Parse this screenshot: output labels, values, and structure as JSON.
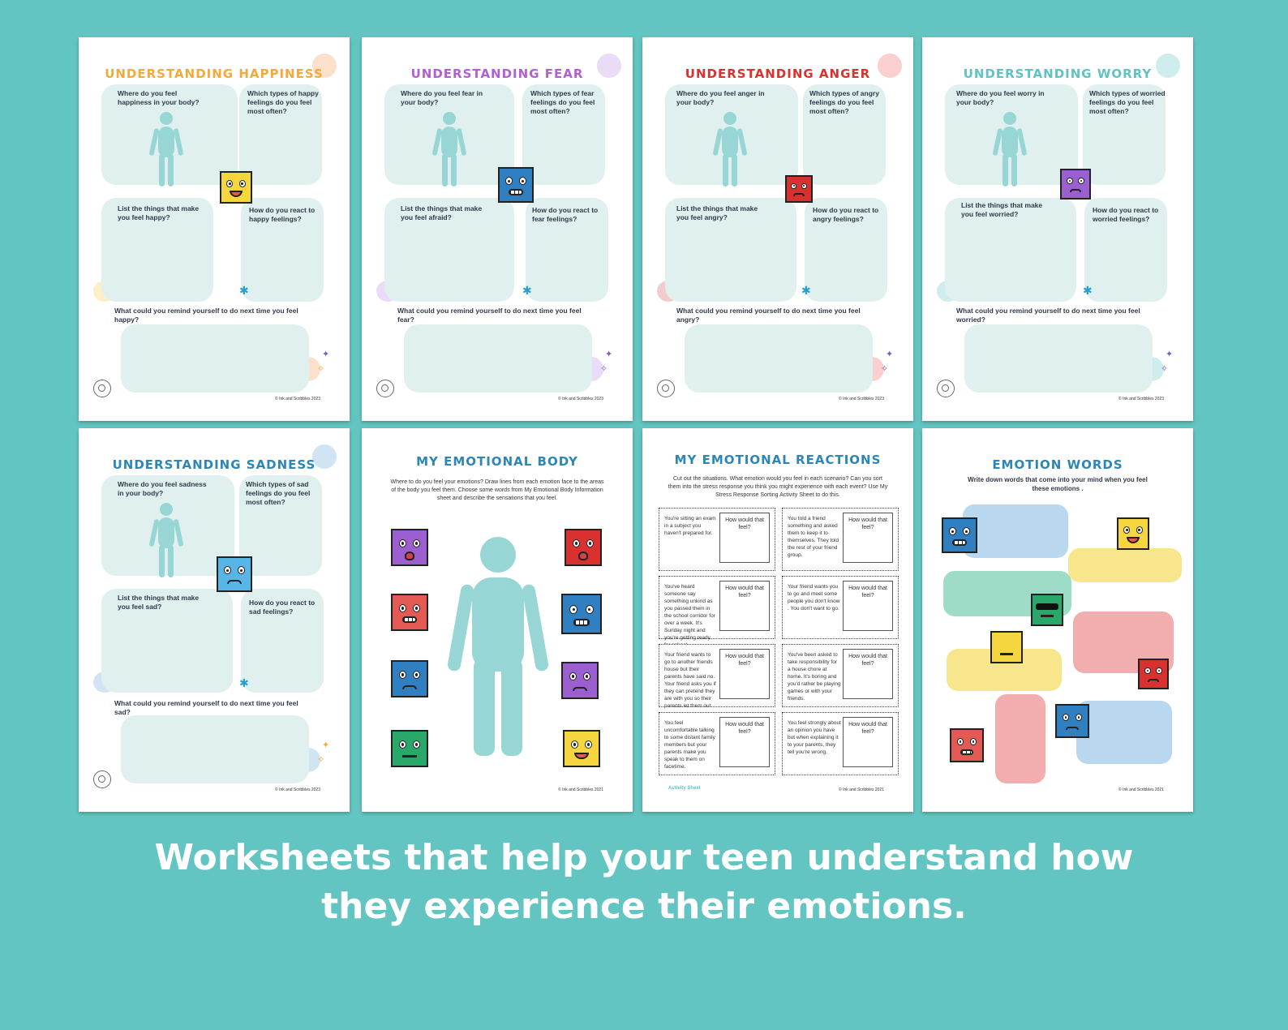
{
  "sheets": {
    "happiness": {
      "title": "UNDERSTANDING HAPPINESS",
      "title_color": "#f3a93c",
      "q1": "Where do you feel happiness in your body?",
      "q2": "Which types of happy feelings do you feel most often?",
      "q3": "List the things that make you feel happy?",
      "q4": "How do you react to happy feelings?",
      "q5": "What could you remind yourself to do next time you feel happy?",
      "copyright": "© Ink and Scribbles 2023"
    },
    "fear": {
      "title": "UNDERSTANDING FEAR",
      "title_color": "#b35fd1",
      "q1": "Where do you feel fear in your body?",
      "q2": "Which types of fear feelings do you feel most often?",
      "q3": "List the things that make you feel afraid?",
      "q4": "How do you react to fear feelings?",
      "q5": "What could you remind yourself to do next time you feel fear?",
      "copyright": "© Ink and Scribbles 2023"
    },
    "anger": {
      "title": "UNDERSTANDING ANGER",
      "title_color": "#d8332f",
      "q1": "Where do you feel anger in your body?",
      "q2": "Which types of angry feelings do you feel most often?",
      "q3": "List the things that make you feel angry?",
      "q4": "How do you react to angry feelings?",
      "q5": "What could you remind yourself to do next time you feel angry?",
      "copyright": "© Ink and Scribbles 2023"
    },
    "worry": {
      "title": "UNDERSTANDING WORRY",
      "title_color": "#5fc3c3",
      "q1": "Where do you feel worry in your body?",
      "q2": "Which types of worried feelings do you feel most often?",
      "q3": "List the things that make you feel worried?",
      "q4": "How do you react to worried feelings?",
      "q5": "What could you remind yourself to do next time you feel worried?",
      "copyright": "© Ink and Scribbles 2023"
    },
    "sadness": {
      "title": "UNDERSTANDING SADNESS",
      "title_color": "#2d86b8",
      "q1": "Where do you feel sadness in your body?",
      "q2": "Which types of sad feelings do you feel most often?",
      "q3": "List the things that make you feel sad?",
      "q4": "How do you react to sad feelings?",
      "q5": "What could you remind yourself to do next time you feel sad?",
      "copyright": "© Ink and Scribbles 2023"
    },
    "body": {
      "title": "MY EMOTIONAL BODY",
      "title_color": "#2d86b8",
      "intro": "Where to do you feel your emotions? Draw lines from each emotion face to the areas of the body you feel them. Choose some words from My Emotional Body Information sheet and describe the sensations that you feel.",
      "copyright": "© Ink and Scribbles 2021"
    },
    "reactions": {
      "title": "MY EMOTIONAL REACTIONS",
      "title_color": "#2d86b8",
      "intro": "Cut out the situations. What emotion would you feel in each scenario? Can you sort them into the stress response you think you might experience with each event? Use My Stress Response Sorting Activity Sheet to do this.",
      "answer_label": "How would that feel?",
      "cards": [
        "You're sitting an exam in a subject you haven't prepared for.",
        "You told a friend something and asked them to keep it to themselves. They told the rest of your friend group.",
        "You've heard someone say something unkind as you passed them in the school corridor for over a week. It's Sunday night and you're getting ready for school.",
        "Your friend wants you to go and meet some people you don't know . You don't want to go.",
        "Your friend wants to go to another friends house but their parents have said no. Your friend asks you if they can pretend they are with you so their parents let them out.",
        "You've been asked to take responsibility for a house chore at home. It's boring and you'd rather be playing games or with your friends.",
        "You feel uncomfortable talking to some distant family members but your parents make you speak to them on facetime.",
        "You feel strongly about an opinion you have but when explaining it to your parents, they tell you're wrong."
      ],
      "footer_label": "Activity Sheet",
      "copyright": "© Ink and Scribbles 2021"
    },
    "words": {
      "title": "EMOTION WORDS",
      "title_color": "#2d86b8",
      "intro": "Write down words that come into your mind when you feel these emotions .",
      "copyright": "© Ink and Scribbles 2021"
    }
  },
  "caption": {
    "line1": "Worksheets that help your teen understand how",
    "line2": "they experience their emotions."
  },
  "colors": {
    "background": "#63c5c1",
    "box": "#dff0ee",
    "figure": "#97d6d4"
  },
  "icons": [
    "person-figure-icon",
    "emotion-face-icon",
    "spiral-icon",
    "asterisk-icon",
    "sparkle-icon",
    "speech-bubble-icon"
  ]
}
